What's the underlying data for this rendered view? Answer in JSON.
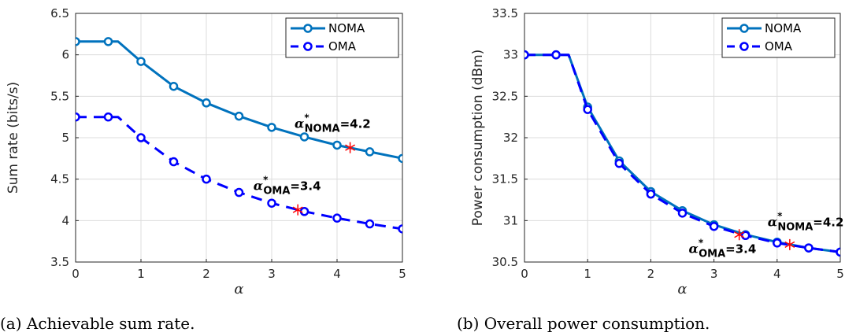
{
  "chart_data": [
    {
      "type": "line",
      "caption": "(a) Achievable sum rate.",
      "xlabel": "α",
      "ylabel": "Sum rate (bits/s)",
      "xlim": [
        0,
        5
      ],
      "ylim": [
        3.5,
        6.5
      ],
      "xticks": [
        "0",
        "1",
        "2",
        "3",
        "4",
        "5"
      ],
      "yticks": [
        "3.5",
        "4",
        "4.5",
        "5",
        "5.5",
        "6",
        "6.5"
      ],
      "grid": true,
      "legend_position": "top-right",
      "series": [
        {
          "name": "NOMA",
          "color": "#0072BD",
          "line": "solid",
          "curve": [
            [
              0,
              6.16
            ],
            [
              0.5,
              6.16
            ],
            [
              0.65,
              6.16
            ],
            [
              1,
              5.92
            ],
            [
              1.5,
              5.62
            ],
            [
              2,
              5.42
            ],
            [
              2.5,
              5.26
            ],
            [
              3,
              5.125
            ],
            [
              3.5,
              5.01
            ],
            [
              4,
              4.91
            ],
            [
              4.5,
              4.83
            ],
            [
              5,
              4.75
            ]
          ],
          "markers": [
            [
              0,
              6.16
            ],
            [
              0.5,
              6.16
            ],
            [
              1,
              5.92
            ],
            [
              1.5,
              5.62
            ],
            [
              2,
              5.42
            ],
            [
              2.5,
              5.26
            ],
            [
              3,
              5.125
            ],
            [
              3.5,
              5.01
            ],
            [
              4,
              4.91
            ],
            [
              4.5,
              4.83
            ],
            [
              5,
              4.75
            ]
          ]
        },
        {
          "name": "OMA",
          "color": "#0000FF",
          "line": "dashed",
          "curve": [
            [
              0,
              5.25
            ],
            [
              0.5,
              5.25
            ],
            [
              0.65,
              5.25
            ],
            [
              1,
              5.0
            ],
            [
              1.5,
              4.71
            ],
            [
              2,
              4.5
            ],
            [
              2.5,
              4.34
            ],
            [
              3,
              4.21
            ],
            [
              3.5,
              4.11
            ],
            [
              4,
              4.03
            ],
            [
              4.5,
              3.96
            ],
            [
              5,
              3.9
            ]
          ],
          "markers": [
            [
              0,
              5.25
            ],
            [
              0.5,
              5.25
            ],
            [
              1,
              5.0
            ],
            [
              1.5,
              4.71
            ],
            [
              2,
              4.5
            ],
            [
              2.5,
              4.34
            ],
            [
              3,
              4.21
            ],
            [
              3.5,
              4.11
            ],
            [
              4,
              4.03
            ],
            [
              4.5,
              3.96
            ],
            [
              5,
              3.9
            ]
          ]
        }
      ],
      "optimal_points": [
        {
          "x": 4.2,
          "y": 4.88,
          "label_main": "α",
          "label_star": "*",
          "label_sub": "NOMA",
          "label_value": "=4.2",
          "label_anchor": [
            3.35,
            5.12
          ]
        },
        {
          "x": 3.4,
          "y": 4.13,
          "label_main": "α",
          "label_star": "*",
          "label_sub": "OMA",
          "label_value": "=3.4",
          "label_anchor": [
            2.72,
            4.37
          ]
        }
      ],
      "optimal_marker_color": "#FF0000"
    },
    {
      "type": "line",
      "caption": "(b) Overall power consumption.",
      "xlabel": "α",
      "ylabel": "Power consumption (dBm)",
      "xlim": [
        0,
        5
      ],
      "ylim": [
        30.5,
        33.5
      ],
      "xticks": [
        "0",
        "1",
        "2",
        "3",
        "4",
        "5"
      ],
      "yticks": [
        "30.5",
        "31",
        "31.5",
        "32",
        "32.5",
        "33",
        "33.5"
      ],
      "grid": true,
      "legend_position": "top-right",
      "series": [
        {
          "name": "NOMA",
          "color": "#0072BD",
          "line": "solid",
          "curve": [
            [
              0,
              33.0
            ],
            [
              0.5,
              33.0
            ],
            [
              0.7,
              33.0
            ],
            [
              1,
              32.37
            ],
            [
              1.5,
              31.72
            ],
            [
              2,
              31.35
            ],
            [
              2.5,
              31.12
            ],
            [
              3,
              30.95
            ],
            [
              3.5,
              30.83
            ],
            [
              4,
              30.74
            ],
            [
              4.5,
              30.67
            ],
            [
              5,
              30.62
            ]
          ],
          "markers": [
            [
              0,
              33.0
            ],
            [
              0.5,
              33.0
            ],
            [
              1,
              32.37
            ],
            [
              1.5,
              31.72
            ],
            [
              2,
              31.35
            ],
            [
              2.5,
              31.12
            ],
            [
              3,
              30.95
            ],
            [
              3.5,
              30.83
            ],
            [
              4,
              30.74
            ],
            [
              4.5,
              30.67
            ],
            [
              5,
              30.62
            ]
          ]
        },
        {
          "name": "OMA",
          "color": "#0000FF",
          "line": "dashed",
          "curve": [
            [
              0,
              33.0
            ],
            [
              0.5,
              33.0
            ],
            [
              0.7,
              33.0
            ],
            [
              1,
              32.34
            ],
            [
              1.5,
              31.69
            ],
            [
              2,
              31.32
            ],
            [
              2.5,
              31.09
            ],
            [
              3,
              30.93
            ],
            [
              3.5,
              30.82
            ],
            [
              4,
              30.73
            ],
            [
              4.5,
              30.67
            ],
            [
              5,
              30.62
            ]
          ],
          "markers": [
            [
              0,
              33.0
            ],
            [
              0.5,
              33.0
            ],
            [
              1,
              32.34
            ],
            [
              1.5,
              31.69
            ],
            [
              2,
              31.32
            ],
            [
              2.5,
              31.09
            ],
            [
              3,
              30.93
            ],
            [
              3.5,
              30.82
            ],
            [
              4,
              30.73
            ],
            [
              4.5,
              30.67
            ],
            [
              5,
              30.62
            ]
          ]
        }
      ],
      "optimal_points": [
        {
          "x": 4.2,
          "y": 30.71,
          "label_main": "α",
          "label_star": "*",
          "label_sub": "NOMA",
          "label_value": "=4.2",
          "label_anchor": [
            3.85,
            30.93
          ]
        },
        {
          "x": 3.4,
          "y": 30.83,
          "label_main": "α",
          "label_star": "*",
          "label_sub": "OMA",
          "label_value": "=3.4",
          "label_anchor": [
            2.6,
            30.61
          ]
        }
      ],
      "optimal_marker_color": "#FF0000"
    }
  ]
}
